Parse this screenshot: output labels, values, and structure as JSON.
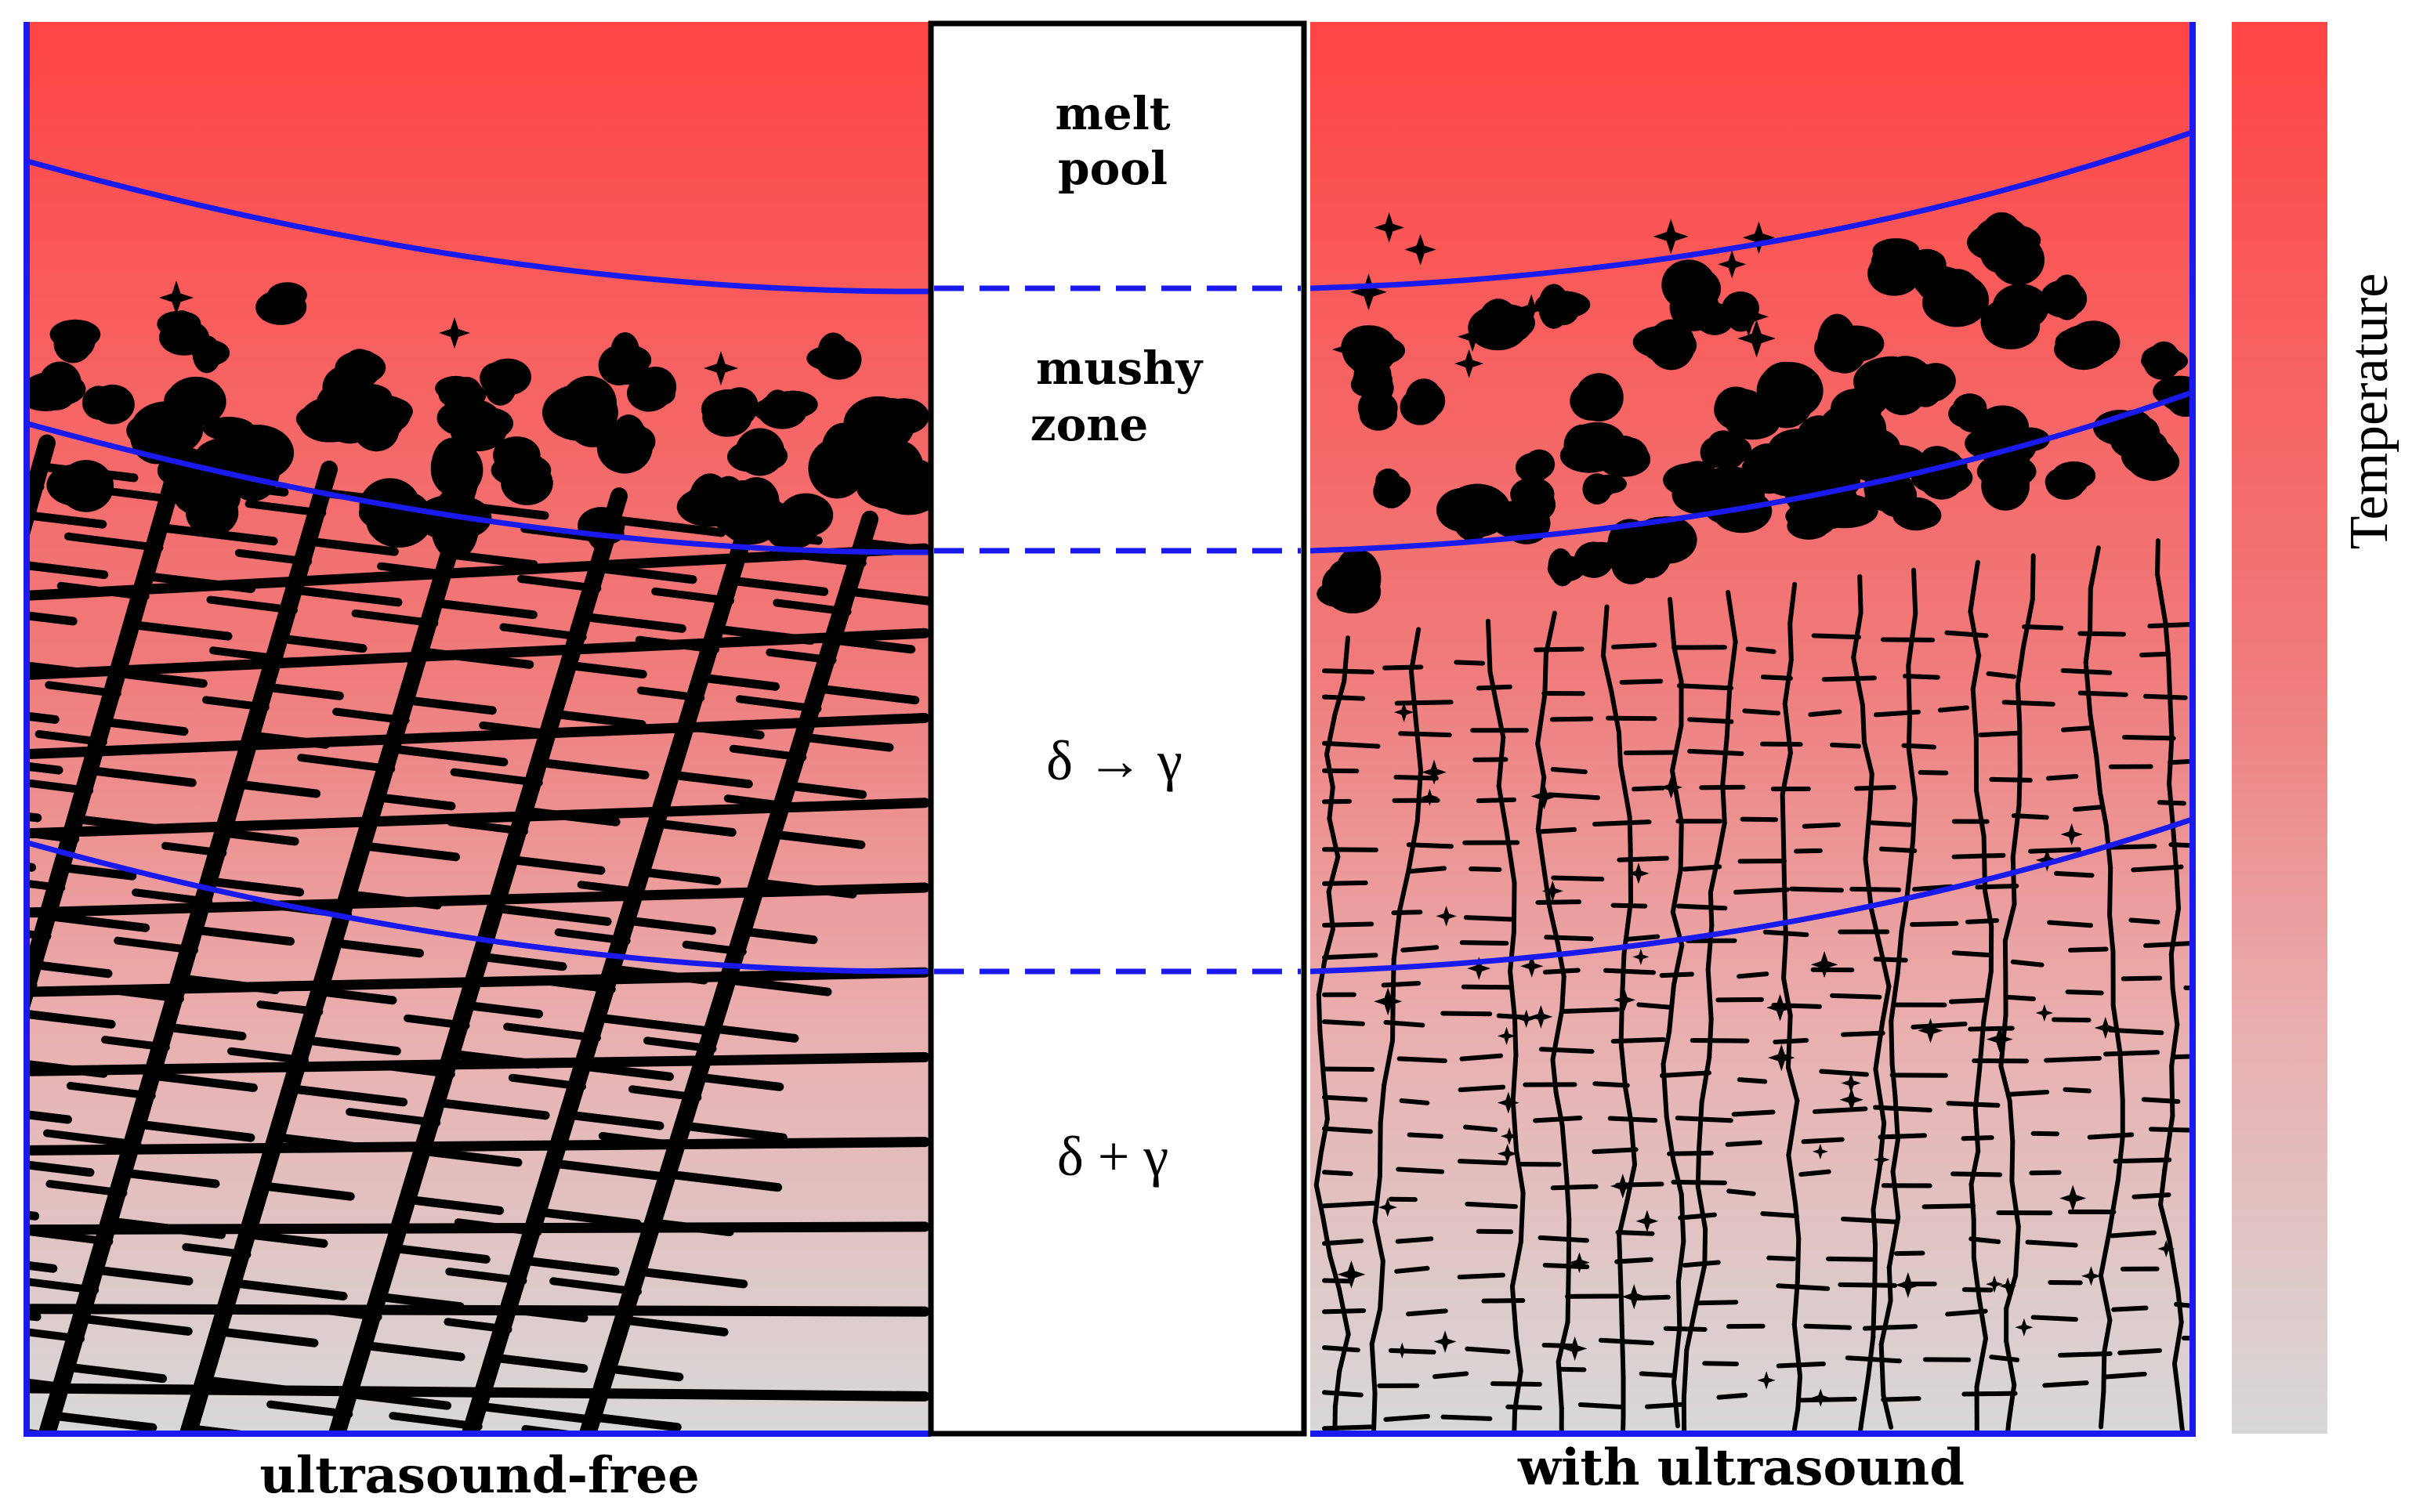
{
  "colors": {
    "hot": "#ff4444",
    "mid": "#f39a9a",
    "cool": "#d8d8d8",
    "boundary": "#1a1aee",
    "dendrite": "#000000",
    "panel_bg": "#ffffff"
  },
  "center_column": {
    "zones": [
      {
        "name": "melt-pool",
        "lines": [
          "melt",
          "pool"
        ]
      },
      {
        "name": "mushy-zone",
        "lines": [
          "mushy",
          "zone"
        ]
      },
      {
        "name": "delta-to-gamma",
        "lines": [
          "δ → γ"
        ]
      },
      {
        "name": "delta-plus-gamma",
        "lines": [
          "δ + γ"
        ]
      }
    ]
  },
  "panels": {
    "left_label": "ultrasound-free",
    "right_label": "with ultrasound"
  },
  "colorbar": {
    "label": "Temperature"
  }
}
